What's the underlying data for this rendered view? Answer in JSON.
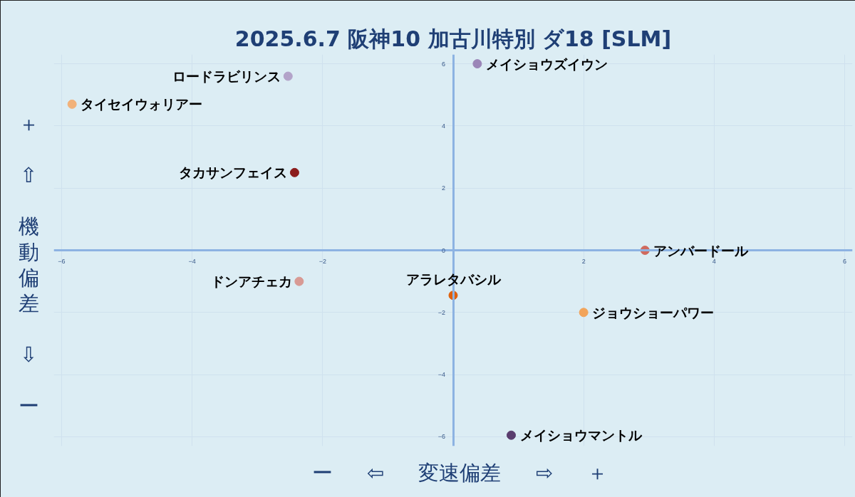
{
  "chart_data": {
    "type": "scatter",
    "title": "2025.6.7 阪神10 加古川特別 ダ18 [SLM]",
    "xlabel": "ー ⇦ 変速偏差 ⇨ ＋",
    "ylabel": "＋ ⇧ 機動偏差 ⇩ ー",
    "xlim": [
      -6,
      6
    ],
    "ylim": [
      -6,
      6
    ],
    "xticks": [
      -6,
      -4,
      -2,
      {
        "value": 0,
        "label": null
      },
      2,
      4,
      6
    ],
    "yticks": [
      -6,
      -4,
      -2,
      0,
      2,
      4,
      6
    ],
    "grid": true,
    "legend": false,
    "marker": "circle",
    "series": [
      {
        "name": "メイショウズイウン",
        "color": "#9b86b8",
        "x": [
          0.37
        ],
        "values": [
          6.0
        ]
      },
      {
        "name": "ロードラビリンス",
        "color": "#b3a3c9",
        "x": [
          -2.53
        ],
        "values": [
          5.6
        ]
      },
      {
        "name": "タイセイウォリアー",
        "color": "#f2b27a",
        "x": [
          -5.84
        ],
        "values": [
          4.7
        ]
      },
      {
        "name": "タカサンフェイス",
        "color": "#8b1c1c",
        "x": [
          -2.43
        ],
        "values": [
          2.5
        ]
      },
      {
        "name": "アンバードール",
        "color": "#d06a5e",
        "x": [
          2.94
        ],
        "values": [
          0.0
        ]
      },
      {
        "name": "ドンアチェカ",
        "color": "#d89a94",
        "x": [
          -2.36
        ],
        "values": [
          -1.0
        ]
      },
      {
        "name": "アラレタバシル",
        "color": "#e0600a",
        "x": [
          0.0
        ],
        "values": [
          -1.45
        ]
      },
      {
        "name": "ジョウショーパワー",
        "color": "#f2a45a",
        "x": [
          2.0
        ],
        "values": [
          -2.0
        ]
      },
      {
        "name": "メイショウマントル",
        "color": "#5a3d6e",
        "x": [
          0.89
        ],
        "values": [
          -5.95
        ]
      }
    ]
  }
}
